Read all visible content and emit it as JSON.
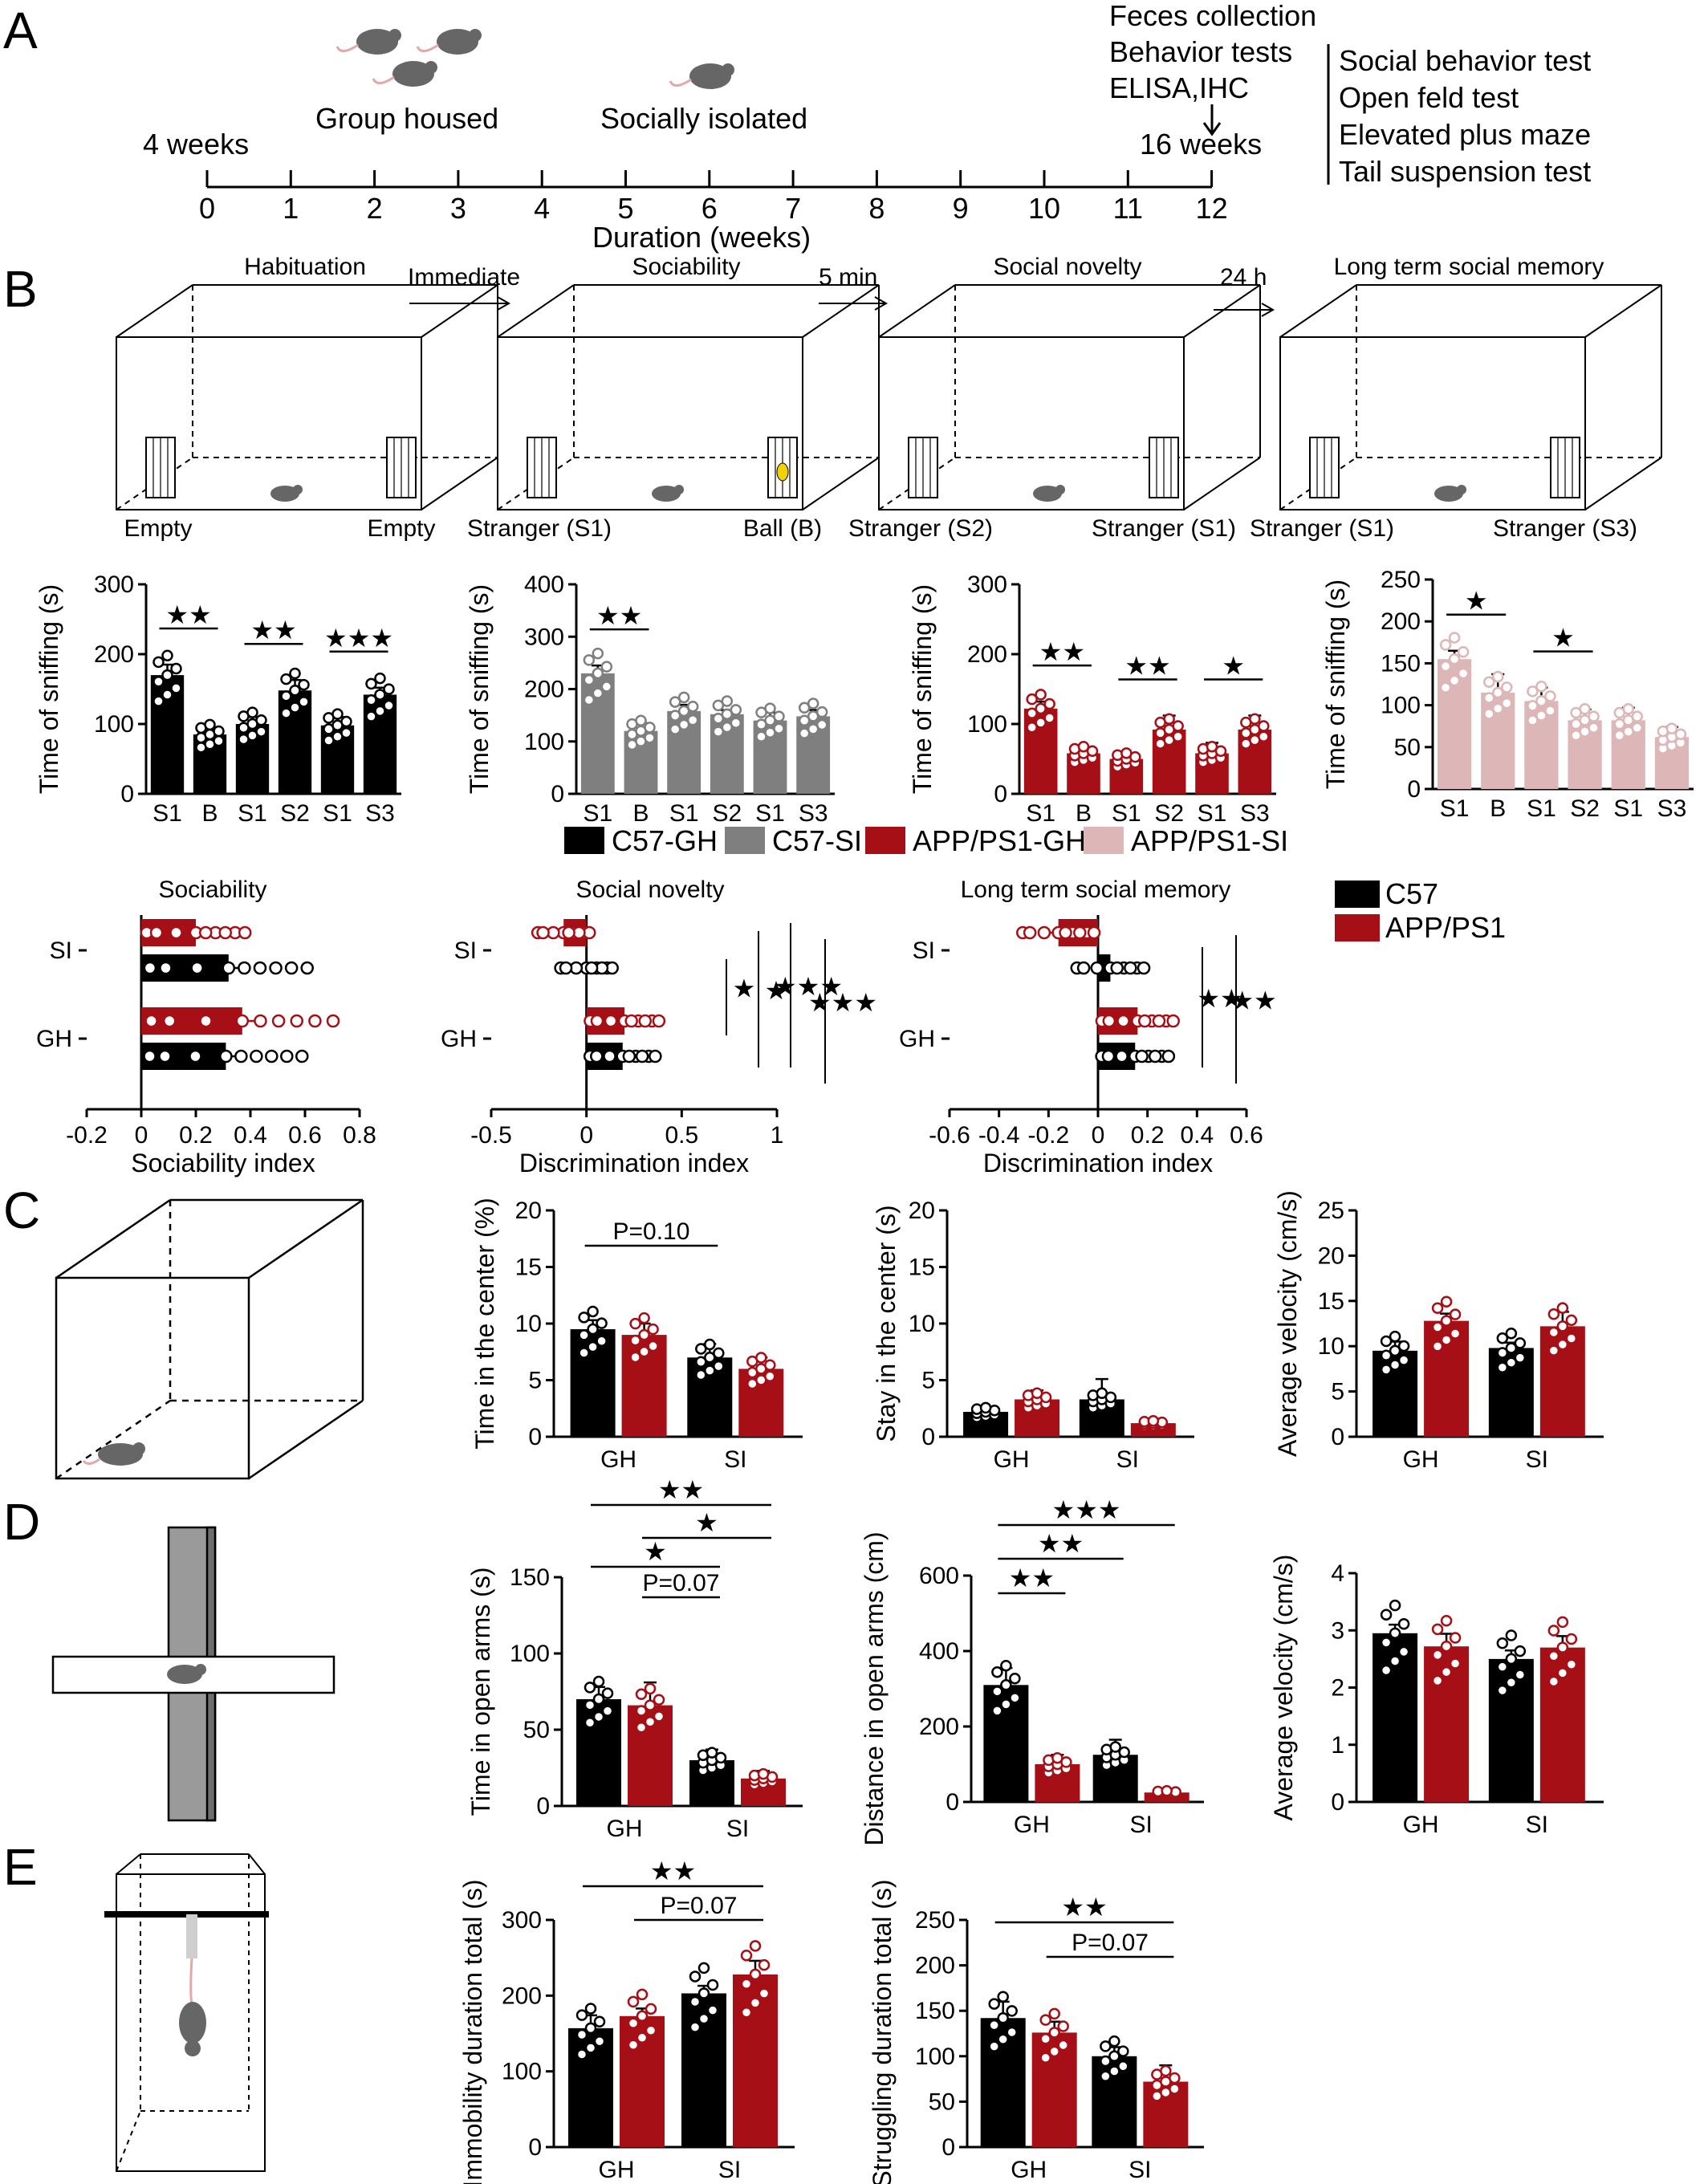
{
  "panels": {
    "A": {
      "letter": "A",
      "group_housed": "Group housed",
      "socially_isolated": "Socially isolated",
      "start_label": "4 weeks",
      "end_label": "16 weeks",
      "ticks": [
        "0",
        "1",
        "2",
        "3",
        "4",
        "5",
        "6",
        "7",
        "8",
        "9",
        "10",
        "11",
        "12"
      ],
      "axis_title": "Duration (weeks)",
      "top_labels": [
        "Feces collection",
        "Behavior tests",
        "ELISA,IHC"
      ],
      "tests": [
        "Social behavior test",
        "Open feld test",
        "Elevated plus maze",
        "Tail suspension test"
      ]
    },
    "B": {
      "letter": "B",
      "stages": [
        {
          "title": "Habituation",
          "left": "Empty",
          "right": "Empty"
        },
        {
          "title": "Sociability",
          "left": "Stranger (S1)",
          "right": "Ball (B)"
        },
        {
          "title": "Social novelty",
          "left": "Stranger (S2)",
          "right": "Stranger (S1)"
        },
        {
          "title": "Long term social memory",
          "left": "Stranger (S1)",
          "right": "Stranger (S3)"
        }
      ],
      "arrows": [
        "Immediate",
        "5 min",
        "24 h"
      ],
      "legend": [
        "C57-GH",
        "C57-SI",
        "APP/PS1-GH",
        "APP/PS1-SI"
      ],
      "index_legend": [
        "C57",
        "APP/PS1"
      ],
      "index_titles": [
        "Sociability",
        "Social novelty",
        "Long term social memory"
      ]
    },
    "C": {
      "letter": "C"
    },
    "D": {
      "letter": "D"
    },
    "E": {
      "letter": "E"
    }
  },
  "colors": {
    "c57_gh": "#000000",
    "c57_si": "#7f7f7f",
    "app_gh": "#a50f15",
    "app_si": "#ddb7b7"
  },
  "chart_data": [
    {
      "id": "B-c57-gh-sniffing",
      "type": "bar",
      "ylabel": "Time of sniffing (s)",
      "categories": [
        "S1",
        "B",
        "S1",
        "S2",
        "S1",
        "S3"
      ],
      "values": [
        170,
        85,
        100,
        148,
        98,
        142
      ],
      "errors": [
        15,
        10,
        10,
        15,
        12,
        10
      ],
      "ylim": [
        0,
        300
      ],
      "yticks": [
        0,
        100,
        200,
        300
      ],
      "color": "#000000",
      "significance": [
        [
          "S1",
          "B",
          "★★"
        ],
        [
          "S1",
          "S2",
          "★★"
        ],
        [
          "S1",
          "S3",
          "★★★"
        ]
      ]
    },
    {
      "id": "B-c57-si-sniffing",
      "type": "bar",
      "ylabel": "Time of sniffing (s)",
      "categories": [
        "S1",
        "B",
        "S1",
        "S2",
        "S1",
        "S3"
      ],
      "values": [
        230,
        120,
        158,
        152,
        140,
        148
      ],
      "errors": [
        15,
        15,
        12,
        8,
        15,
        12
      ],
      "ylim": [
        0,
        400
      ],
      "yticks": [
        0,
        100,
        200,
        300,
        400
      ],
      "color": "#7f7f7f",
      "significance": [
        [
          "S1",
          "B",
          "★★"
        ]
      ]
    },
    {
      "id": "B-app-gh-sniffing",
      "type": "bar",
      "ylabel": "Time of sniffing (s)",
      "categories": [
        "S1",
        "B",
        "S1",
        "S2",
        "S1",
        "S3"
      ],
      "values": [
        122,
        58,
        50,
        92,
        58,
        92
      ],
      "errors": [
        10,
        8,
        8,
        20,
        15,
        20
      ],
      "ylim": [
        0,
        300
      ],
      "yticks": [
        0,
        100,
        200,
        300
      ],
      "color": "#a50f15",
      "significance": [
        [
          "S1",
          "B",
          "★★"
        ],
        [
          "S1",
          "S2",
          "★★"
        ],
        [
          "S1",
          "S3",
          "★"
        ]
      ]
    },
    {
      "id": "B-app-si-sniffing",
      "type": "bar",
      "ylabel": "Time of sniffing (s)",
      "categories": [
        "S1",
        "B",
        "S1",
        "S2",
        "S1",
        "S3"
      ],
      "values": [
        155,
        115,
        105,
        82,
        82,
        62
      ],
      "errors": [
        10,
        22,
        16,
        13,
        15,
        12
      ],
      "ylim": [
        0,
        250
      ],
      "yticks": [
        0,
        50,
        100,
        150,
        200,
        250
      ],
      "color": "#ddb7b7",
      "significance": [
        [
          "S1",
          "B",
          "★"
        ],
        [
          "S1",
          "S2",
          "★"
        ]
      ]
    },
    {
      "id": "B-sociability-index",
      "type": "bar",
      "orientation": "horizontal",
      "title": "Sociability",
      "xlabel": "Sociability index",
      "xlim": [
        -0.2,
        0.8
      ],
      "xticks": [
        "-0.2",
        "0",
        "0.2",
        "0.4",
        "0.6",
        "0.8"
      ],
      "categories": [
        "SI",
        "GH"
      ],
      "series": [
        {
          "name": "C57",
          "values": [
            0.32,
            0.31
          ]
        },
        {
          "name": "APP/PS1",
          "values": [
            0.2,
            0.37
          ]
        }
      ]
    },
    {
      "id": "B-novelty-index",
      "type": "bar",
      "orientation": "horizontal",
      "title": "Social novelty",
      "xlabel": "Discrimination index",
      "xlim": [
        -0.5,
        1.0
      ],
      "xticks": [
        "-0.5",
        "0",
        "0.5",
        "1"
      ],
      "categories": [
        "SI",
        "GH"
      ],
      "series": [
        {
          "name": "C57",
          "values": [
            0.0,
            0.19
          ]
        },
        {
          "name": "APP/PS1",
          "values": [
            -0.12,
            0.2
          ]
        }
      ],
      "significance": [
        "★",
        "★",
        "★★★",
        "★★★"
      ]
    },
    {
      "id": "B-ltm-index",
      "type": "bar",
      "orientation": "horizontal",
      "title": "Long term social memory",
      "xlabel": "Discrimination index",
      "xlim": [
        -0.6,
        0.6
      ],
      "xticks": [
        "-0.6",
        "-0.4",
        "-0.2",
        "0",
        "0.2",
        "0.4",
        "0.6"
      ],
      "categories": [
        "SI",
        "GH"
      ],
      "series": [
        {
          "name": "C57",
          "values": [
            0.05,
            0.15
          ]
        },
        {
          "name": "APP/PS1",
          "values": [
            -0.16,
            0.16
          ]
        }
      ],
      "significance": [
        "★★",
        "★★"
      ]
    },
    {
      "id": "C-time-center",
      "type": "bar",
      "ylabel": "Time in the center (%)",
      "categories": [
        "GH",
        "SI"
      ],
      "ylim": [
        0,
        20
      ],
      "yticks": [
        0,
        5,
        10,
        15,
        20
      ],
      "series": [
        {
          "name": "C57",
          "values": [
            9.5,
            7.0
          ],
          "errors": [
            0.8,
            1.2
          ]
        },
        {
          "name": "APP/PS1",
          "values": [
            9.0,
            6.0
          ],
          "errors": [
            1.0,
            1.0
          ]
        }
      ],
      "significance": [
        "P=0.10"
      ]
    },
    {
      "id": "C-stay-center",
      "type": "bar",
      "ylabel": "Stay in the center (s)",
      "categories": [
        "GH",
        "SI"
      ],
      "ylim": [
        0,
        20
      ],
      "yticks": [
        0,
        5,
        10,
        15,
        20
      ],
      "series": [
        {
          "name": "C57",
          "values": [
            2.2,
            3.3
          ],
          "errors": [
            0.3,
            1.8
          ]
        },
        {
          "name": "APP/PS1",
          "values": [
            3.3,
            1.2
          ],
          "errors": [
            0.8,
            0.4
          ]
        }
      ]
    },
    {
      "id": "C-velocity",
      "type": "bar",
      "ylabel": "Average velocity (cm/s)",
      "categories": [
        "GH",
        "SI"
      ],
      "ylim": [
        0,
        25
      ],
      "yticks": [
        0,
        5,
        10,
        15,
        20,
        25
      ],
      "series": [
        {
          "name": "C57",
          "values": [
            9.5,
            9.8
          ],
          "errors": [
            1.0,
            0.6
          ]
        },
        {
          "name": "APP/PS1",
          "values": [
            12.8,
            12.2
          ],
          "errors": [
            0.8,
            1.6
          ]
        }
      ]
    },
    {
      "id": "D-time-open",
      "type": "bar",
      "ylabel": "Time in open arms (s)",
      "categories": [
        "GH",
        "SI"
      ],
      "ylim": [
        0,
        150
      ],
      "yticks": [
        0,
        50,
        100,
        150
      ],
      "series": [
        {
          "name": "C57",
          "values": [
            70,
            30
          ],
          "errors": [
            8,
            7
          ]
        },
        {
          "name": "APP/PS1",
          "values": [
            66,
            18
          ],
          "errors": [
            15,
            5
          ]
        }
      ],
      "significance": [
        "★★",
        "★",
        "★",
        "P=0.07"
      ]
    },
    {
      "id": "D-distance-open",
      "type": "bar",
      "ylabel": "Distance in open arms (cm)",
      "categories": [
        "GH",
        "SI"
      ],
      "ylim": [
        0,
        600
      ],
      "yticks": [
        0,
        200,
        400,
        600
      ],
      "series": [
        {
          "name": "C57",
          "values": [
            310,
            125
          ],
          "errors": [
            45,
            40
          ]
        },
        {
          "name": "APP/PS1",
          "values": [
            100,
            25
          ],
          "errors": [
            25,
            8
          ]
        }
      ],
      "significance": [
        "★★★",
        "★★",
        "★★"
      ]
    },
    {
      "id": "D-velocity",
      "type": "bar",
      "ylabel": "Average velocity (cm/s)",
      "categories": [
        "GH",
        "SI"
      ],
      "ylim": [
        0,
        4
      ],
      "yticks": [
        0,
        1,
        2,
        3,
        4
      ],
      "series": [
        {
          "name": "C57",
          "values": [
            2.95,
            2.5
          ],
          "errors": [
            0.15,
            0.15
          ]
        },
        {
          "name": "APP/PS1",
          "values": [
            2.72,
            2.7
          ],
          "errors": [
            0.22,
            0.2
          ]
        }
      ]
    },
    {
      "id": "E-immobility",
      "type": "bar",
      "ylabel": "Immobility duration total (s)",
      "categories": [
        "GH",
        "SI"
      ],
      "ylim": [
        0,
        300
      ],
      "yticks": [
        0,
        100,
        200,
        300
      ],
      "series": [
        {
          "name": "C57",
          "values": [
            157,
            203
          ],
          "errors": [
            17,
            10
          ]
        },
        {
          "name": "APP/PS1",
          "values": [
            173,
            228
          ],
          "errors": [
            10,
            18
          ]
        }
      ],
      "significance": [
        "★★",
        "P=0.07"
      ]
    },
    {
      "id": "E-struggling",
      "type": "bar",
      "ylabel": "Struggling duration total (s)",
      "categories": [
        "GH",
        "SI"
      ],
      "ylim": [
        0,
        250
      ],
      "yticks": [
        0,
        50,
        100,
        150,
        200,
        250
      ],
      "series": [
        {
          "name": "C57",
          "values": [
            142,
            100
          ],
          "errors": [
            18,
            10
          ]
        },
        {
          "name": "APP/PS1",
          "values": [
            126,
            72
          ],
          "errors": [
            12,
            18
          ]
        }
      ],
      "significance": [
        "★★",
        "P=0.07"
      ]
    }
  ]
}
